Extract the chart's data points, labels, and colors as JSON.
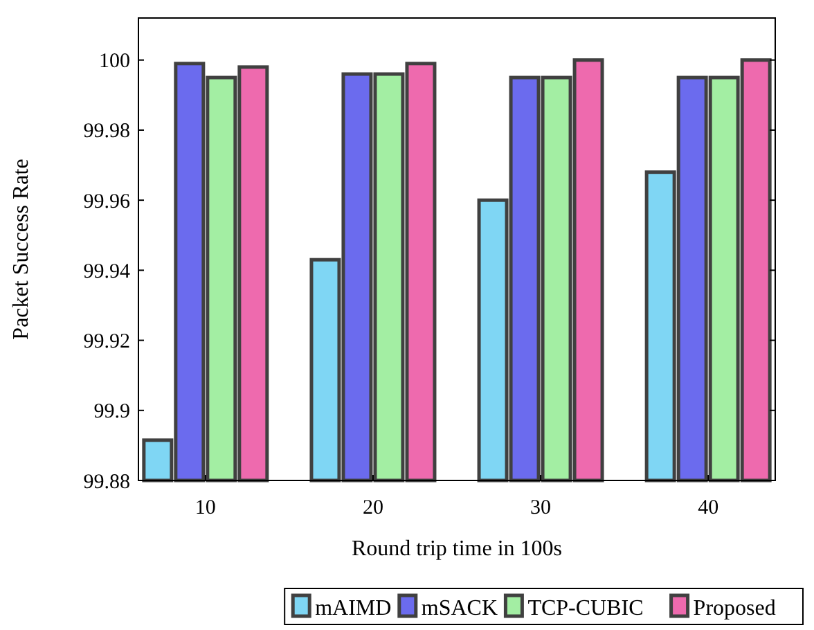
{
  "chart_data": {
    "type": "bar",
    "xlabel": "Round trip time in 100s",
    "ylabel": "Packet Success Rate",
    "categories": [
      "10",
      "20",
      "30",
      "40"
    ],
    "series": [
      {
        "name": "mAIMD",
        "color": "#7fd6f4",
        "values": [
          99.8915,
          99.943,
          99.96,
          99.968
        ]
      },
      {
        "name": "mSACK",
        "color": "#6b6bee",
        "values": [
          99.999,
          99.996,
          99.995,
          99.995
        ]
      },
      {
        "name": "TCP-CUBIC",
        "color": "#a3eea3",
        "values": [
          99.995,
          99.996,
          99.995,
          99.995
        ]
      },
      {
        "name": "Proposed",
        "color": "#ee6aae",
        "values": [
          99.998,
          99.999,
          100.0,
          100.0
        ]
      }
    ],
    "ylim": [
      99.88,
      100.012
    ],
    "yticks": [
      99.88,
      99.9,
      99.92,
      99.94,
      99.96,
      99.98,
      100
    ],
    "legend": "bottom",
    "grid": false
  }
}
